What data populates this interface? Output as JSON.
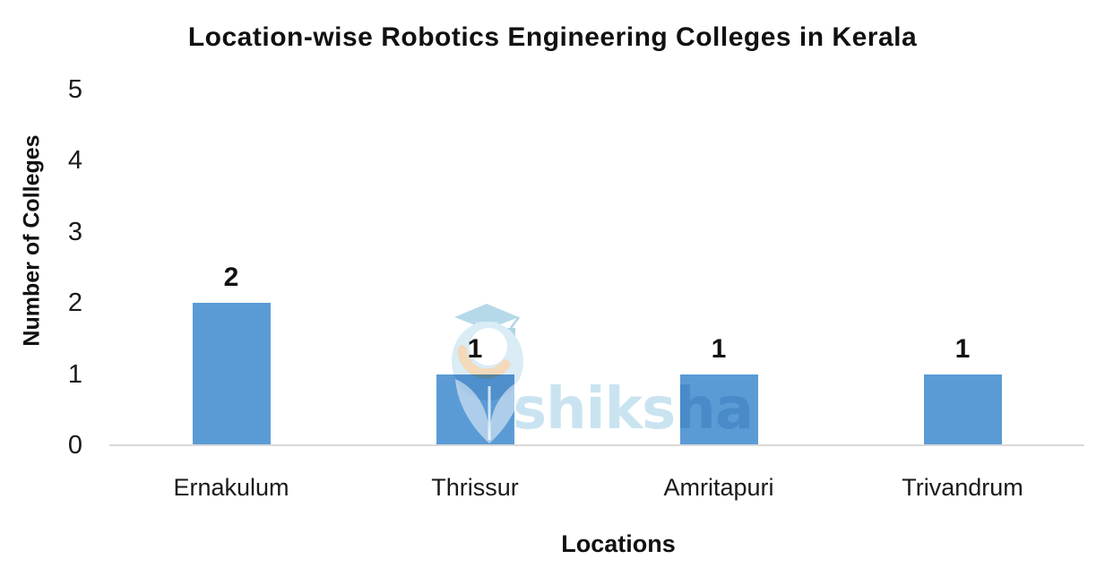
{
  "title": "Location-wise Robotics Engineering Colleges in Kerala",
  "watermark": {
    "text": "shiksha"
  },
  "colors": {
    "bar": "#5b9bd5",
    "axis_line": "#d9d9d9",
    "text": "#1a1a1a",
    "watermark_blue": "#c9e4f0",
    "watermark_cap_blue": "#b5d9e9",
    "watermark_body_blue": "#daecf5",
    "watermark_peach": "#f4d9ba"
  },
  "chart_data": {
    "type": "bar",
    "title": "Location-wise Robotics Engineering Colleges in Kerala",
    "xlabel": "Locations",
    "ylabel": "Number of Colleges",
    "categories": [
      "Ernakulum",
      "Thrissur",
      "Amritapuri",
      "Trivandrum"
    ],
    "values": [
      2,
      1,
      1,
      1
    ],
    "ylim": [
      0,
      5
    ],
    "yticks": [
      0,
      1,
      2,
      3,
      4,
      5
    ],
    "grid": false,
    "legend": false,
    "data_labels": true,
    "bar_color": "#5b9bd5"
  }
}
